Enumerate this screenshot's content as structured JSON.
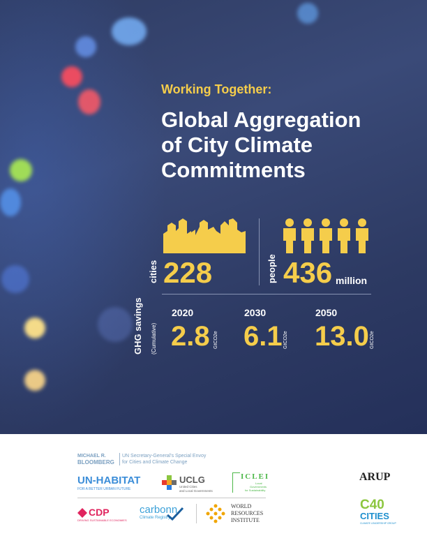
{
  "header": {
    "subtitle": "Working Together:",
    "title_lines": [
      "Global Aggregation",
      "of City Climate",
      "Commitments"
    ]
  },
  "stats": {
    "cities": {
      "label": "cities",
      "value": "228"
    },
    "people": {
      "label": "people",
      "value": "436",
      "unit": "million"
    }
  },
  "ghg": {
    "label": "GHG savings",
    "sublabel": "(Cumulative)",
    "unit": "GtCO2e",
    "items": [
      {
        "year": "2020",
        "value": "2.8"
      },
      {
        "year": "2030",
        "value": "6.1"
      },
      {
        "year": "2050",
        "value": "13.0"
      }
    ]
  },
  "logos": {
    "bloomberg": {
      "name_line1": "MICHAEL R.",
      "name_line2": "BLOOMBERG",
      "desc_line1": "UN Secretary-General's Special Envoy",
      "desc_line2": "for Cities and Climate Change"
    },
    "unhabitat": {
      "name": "UN-HABITAT",
      "tagline": "FOR A BETTER URBAN FUTURE"
    },
    "uclg": {
      "name": "UCLG",
      "desc_line1": "United Cities",
      "desc_line2": "and Local Governments"
    },
    "iclei": {
      "name": "ICLEI",
      "desc_line1": "Local",
      "desc_line2": "Governments",
      "desc_line3": "for Sustainability"
    },
    "arup": {
      "name": "ARUP"
    },
    "cdp": {
      "name": "CDP",
      "tagline": "DRIVING SUSTAINABLE ECONOMIES"
    },
    "carbonn": {
      "name": "carbonn",
      "tagline": "Climate Registry"
    },
    "wri": {
      "line1": "WORLD",
      "line2": "RESOURCES",
      "line3": "INSTITUTE"
    },
    "c40": {
      "line1": "C40",
      "line2": "CITIES",
      "tagline": "CLIMATE LEADERSHIP GROUP"
    }
  },
  "colors": {
    "accent": "#f5cd4b",
    "hero_bg": "#34426d"
  }
}
